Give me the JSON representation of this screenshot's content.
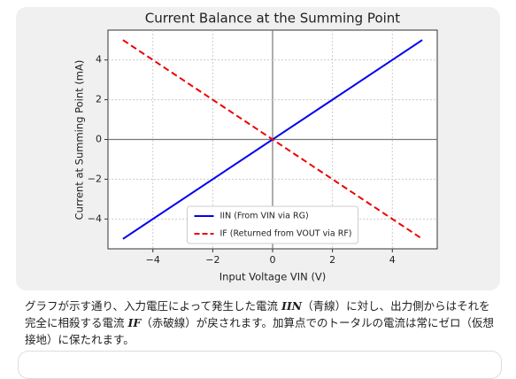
{
  "chart_data": {
    "type": "line",
    "title": "Current Balance at the Summing Point",
    "x_label": "Input Voltage VIN (V)",
    "y_label": "Current at Summing Point (mA)",
    "x": [
      -5,
      5
    ],
    "series": [
      {
        "name": "IIN (From VIN via RG)",
        "color": "#0000ee",
        "dash": "solid",
        "values": [
          -5,
          5
        ]
      },
      {
        "name": "IF (Returned from VOUT via RF)",
        "color": "#ee0000",
        "dash": "dashed",
        "values": [
          5,
          -5
        ]
      }
    ],
    "xlim": [
      -5.5,
      5.5
    ],
    "ylim": [
      -5.5,
      5.5
    ],
    "xticks": [
      {
        "value": -4,
        "label": "−4"
      },
      {
        "value": -2,
        "label": "−2"
      },
      0,
      2,
      4
    ],
    "yticks": [
      {
        "value": -4,
        "label": "−4"
      },
      {
        "value": -2,
        "label": "−2"
      },
      0,
      2,
      4
    ],
    "grid": true,
    "legend": "lower center"
  },
  "paragraph": [
    "グラフが示す通り、入力電圧によって発生した電流 ",
    "IIN",
    "（青線）に対し、出力側からはそれを完全に相殺する電流 ",
    "IF",
    "（赤破線）が戻されます。加算点でのトータルの電流は常にゼロ（仮想接地）に保たれます。"
  ]
}
